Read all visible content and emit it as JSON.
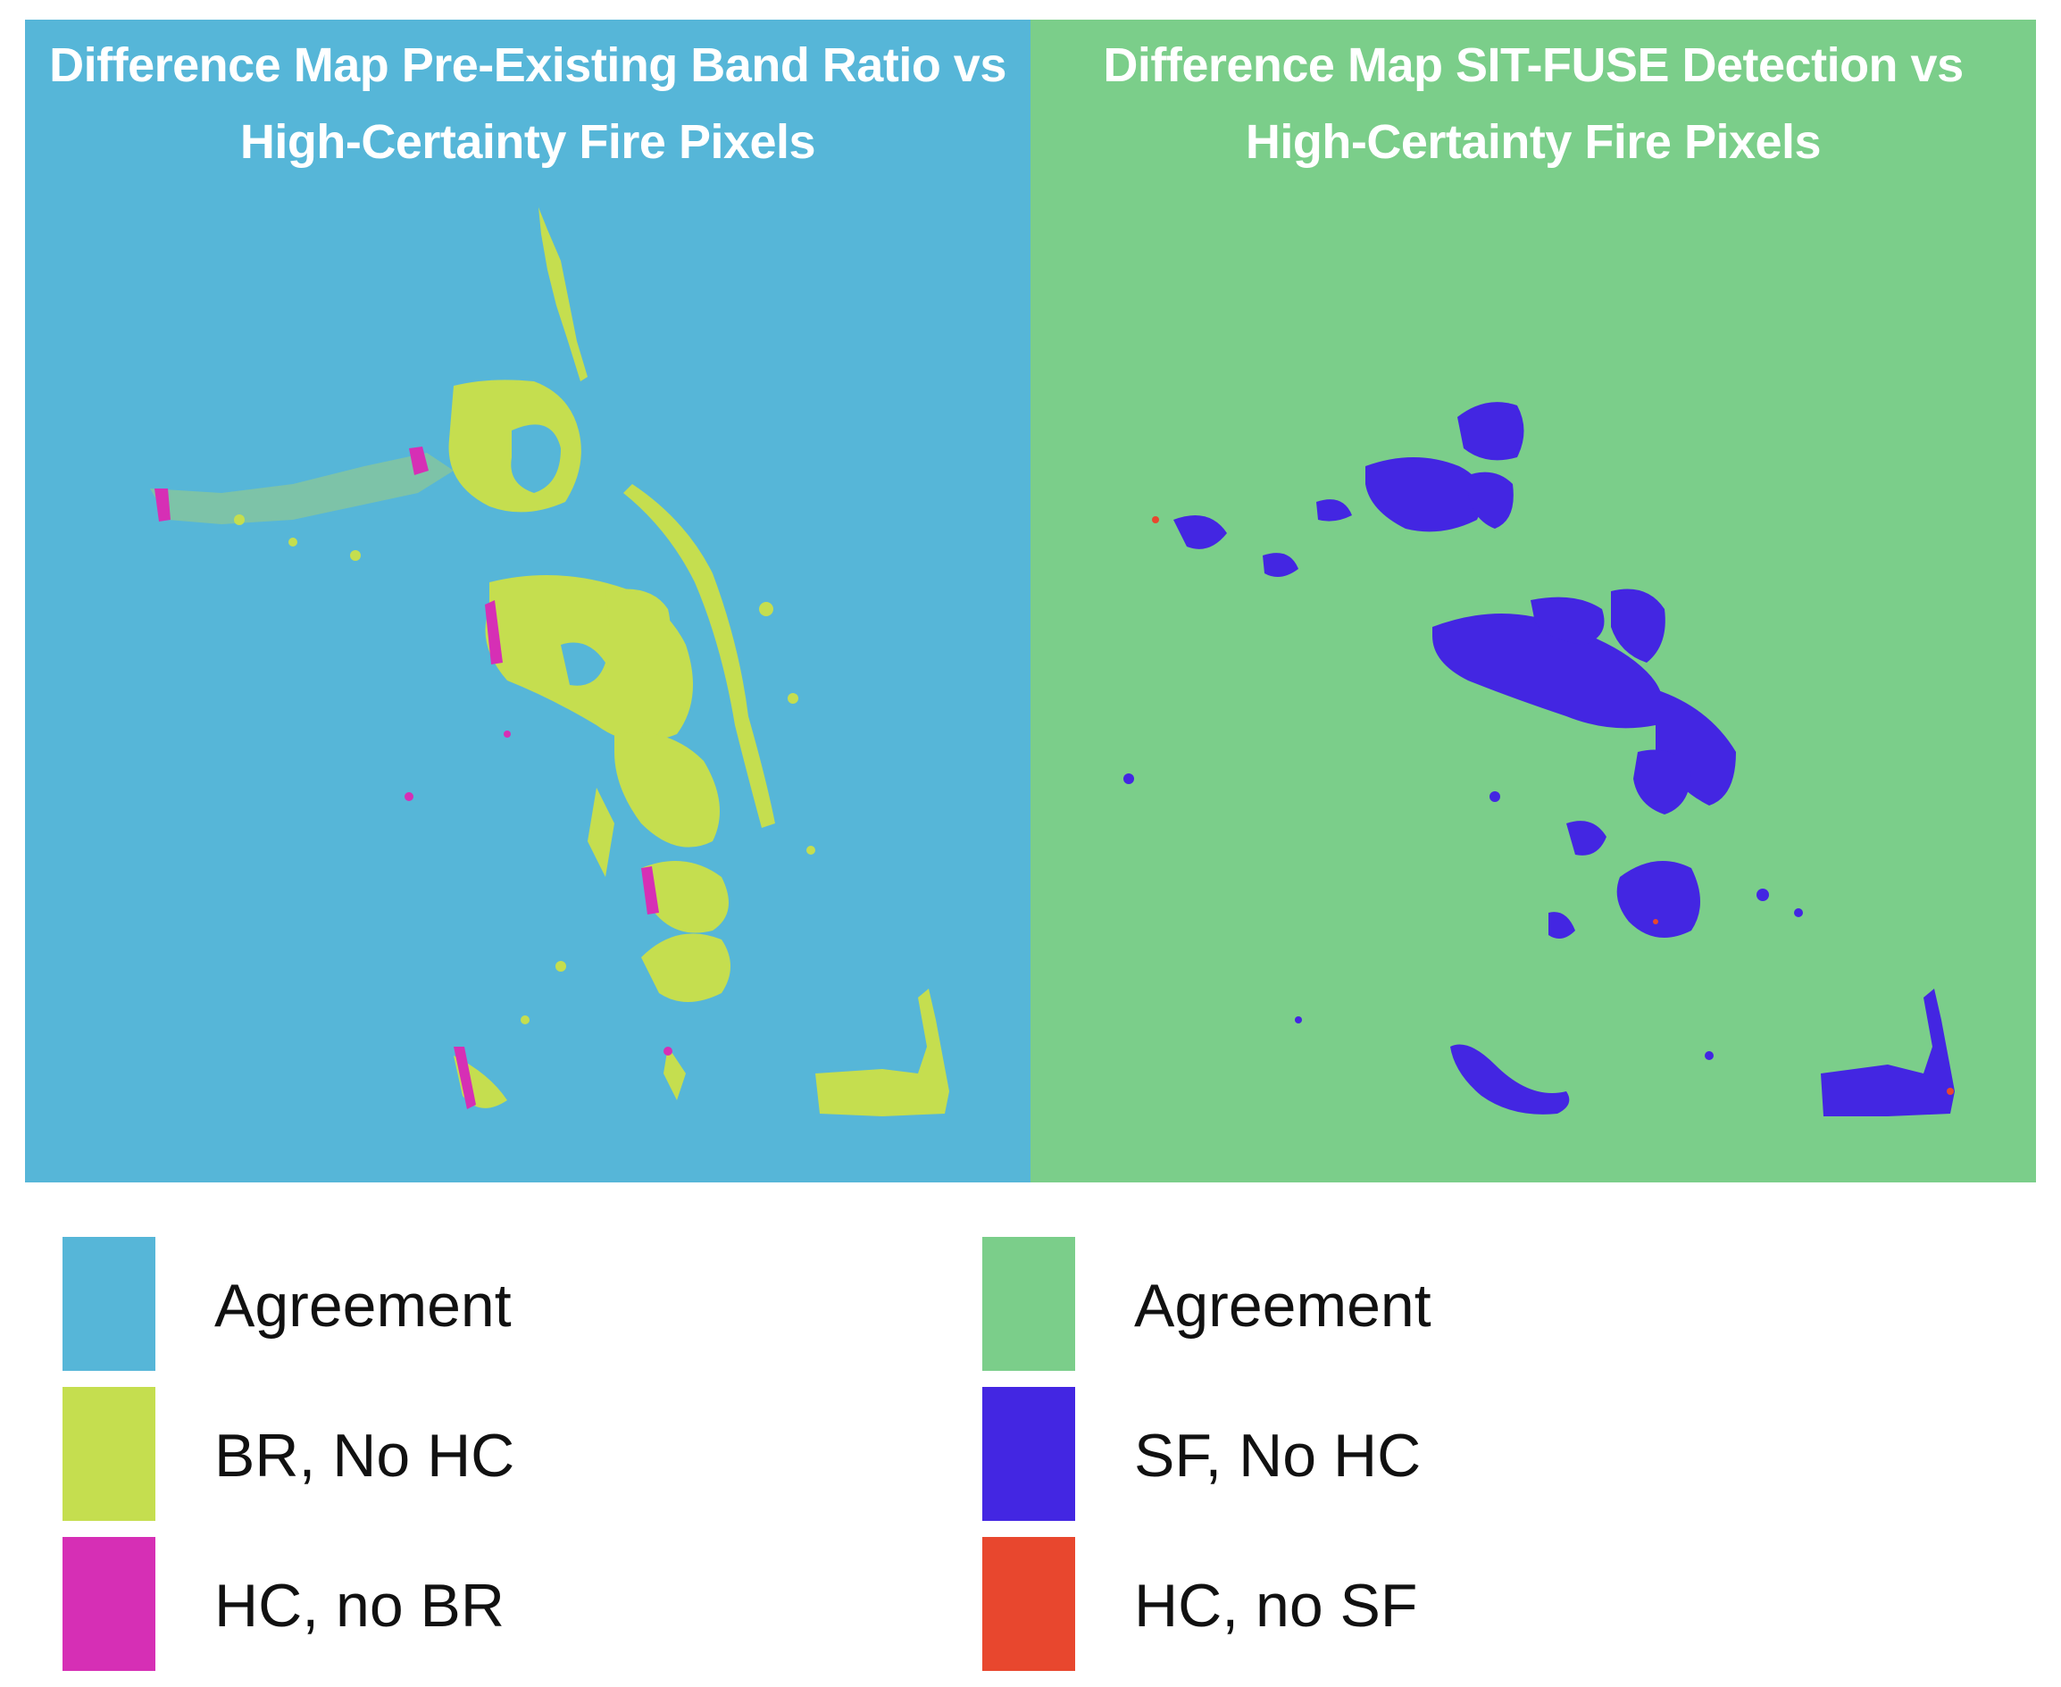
{
  "panels": [
    {
      "title_line1": "Difference Map Pre-Existing Band Ratio vs",
      "title_line2": "High-Certainty Fire Pixels",
      "background_color": "#56b6d8",
      "legend": [
        {
          "label": "Agreement",
          "color": "#56b6d8"
        },
        {
          "label": "BR, No HC",
          "color": "#c5de4f"
        },
        {
          "label": "HC, no BR",
          "color": "#d62fb5"
        }
      ]
    },
    {
      "title_line1": "Difference Map SIT-FUSE Detection vs",
      "title_line2": "High-Certainty Fire Pixels",
      "background_color": "#7bce8a",
      "legend": [
        {
          "label": "Agreement",
          "color": "#7bce8a"
        },
        {
          "label": "SF, No HC",
          "color": "#4326e2"
        },
        {
          "label": "HC, no SF",
          "color": "#e8472e"
        }
      ]
    }
  ]
}
